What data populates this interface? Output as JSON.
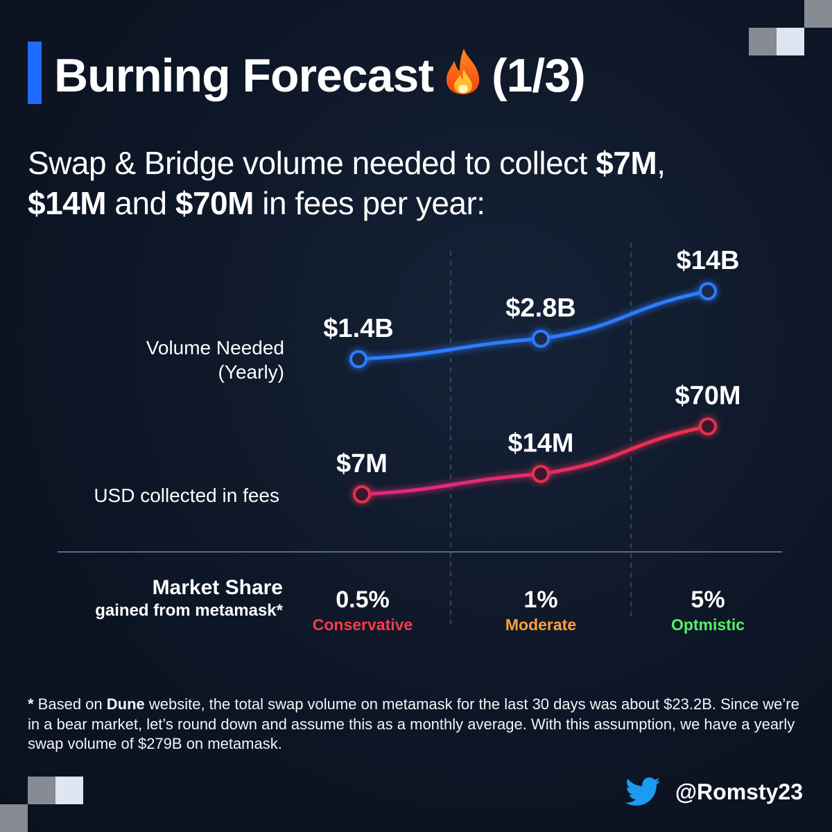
{
  "title": {
    "text": "Burning Forecast",
    "page": "(1/3)"
  },
  "subtitle": {
    "part1": "Swap & Bridge volume needed to collect ",
    "b1": "$7M",
    "part2": ",",
    "b2": "$14M",
    "part3": " and ",
    "b3": "$70M",
    "part4": " in fees per year:"
  },
  "rows": {
    "volume_label_1": "Volume Needed",
    "volume_label_2": "(Yearly)",
    "fees_label": "USD collected in fees"
  },
  "market_share": {
    "label_1": "Market Share",
    "label_2": "gained from metamask*",
    "columns": [
      {
        "pct": "0.5%",
        "tier": "Conservative",
        "color": "#ff3b47"
      },
      {
        "pct": "1%",
        "tier": "Moderate",
        "color": "#ffa040"
      },
      {
        "pct": "5%",
        "tier": "Optmistic",
        "color": "#55f06a"
      }
    ]
  },
  "chart_data": {
    "type": "line",
    "categories": [
      "0.5%",
      "1%",
      "5%"
    ],
    "series": [
      {
        "name": "Volume Needed (Yearly)",
        "values": [
          1.4,
          2.8,
          14
        ],
        "unit": "B USD",
        "labels": [
          "$1.4B",
          "$2.8B",
          "$14B"
        ],
        "color": "#2f7bff"
      },
      {
        "name": "USD collected in fees",
        "values": [
          7,
          14,
          70
        ],
        "unit": "M USD",
        "labels": [
          "$7M",
          "$14M",
          "$70M"
        ],
        "color": "#e2304f"
      }
    ],
    "grid": "dashed vertical separators",
    "legend": "left row labels"
  },
  "footnote": {
    "star": "*",
    "t1": " Based on ",
    "dune": "Dune",
    "t2": " website, the total swap volume on metamask for the last 30 days was about $23.2B. Since we’re in a bear market, let’s round down and assume this as a monthly average. With this assumption, we have a yearly swap volume of $279B on metamask."
  },
  "author": {
    "handle": "@Romsty23",
    "icon": "twitter-bird-icon"
  },
  "colors": {
    "accent": "#1f6bff",
    "background": "#0d1626"
  }
}
